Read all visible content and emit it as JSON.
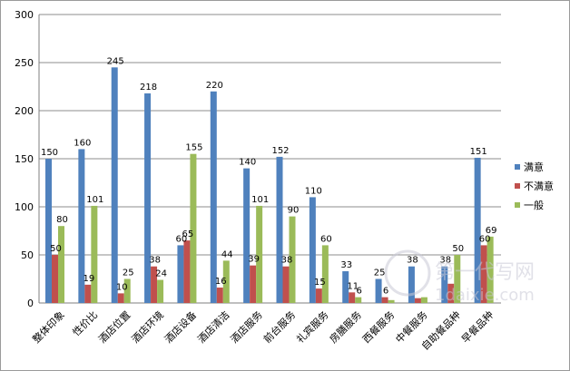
{
  "chart_data": {
    "type": "bar",
    "categories": [
      "整体印象",
      "性价比",
      "酒店位置",
      "酒店环境",
      "酒店设备",
      "酒店清洁",
      "酒店服务",
      "前台服务",
      "礼宾服务",
      "房膳服务",
      "西餐服务",
      "中餐服务",
      "自助餐品种",
      "早餐品种"
    ],
    "series": [
      {
        "name": "满意",
        "color": "#4f81bd",
        "values": [
          150,
          160,
          245,
          218,
          60,
          220,
          140,
          152,
          110,
          33,
          25,
          38,
          38,
          151
        ]
      },
      {
        "name": "不满意",
        "color": "#c0504d",
        "values": [
          50,
          19,
          10,
          38,
          65,
          16,
          39,
          38,
          15,
          11,
          6,
          5,
          20,
          60
        ]
      },
      {
        "name": "一般",
        "color": "#9bbb59",
        "values": [
          80,
          101,
          25,
          24,
          155,
          44,
          101,
          90,
          60,
          6,
          3,
          6,
          50,
          69
        ]
      }
    ],
    "data_labels": [
      [
        "150",
        "160",
        "245",
        "218",
        "60",
        "220",
        "140",
        "152",
        "110",
        "33",
        "25",
        "38",
        "38",
        "151"
      ],
      [
        "50",
        "19",
        "10",
        "38",
        "65",
        "16",
        "39",
        "38",
        "15",
        "11",
        "6",
        "",
        "",
        "60"
      ],
      [
        "80",
        "101",
        "25",
        "24",
        "155",
        "44",
        "101",
        "90",
        "60",
        "6",
        "",
        "",
        "50",
        "69"
      ]
    ],
    "ylim": [
      0,
      300
    ],
    "yticks": [
      0,
      50,
      100,
      150,
      200,
      250,
      300
    ],
    "grid": true,
    "legend": "right"
  },
  "watermark": {
    "main": "第一代写网",
    "sub": "1daixie.com"
  }
}
